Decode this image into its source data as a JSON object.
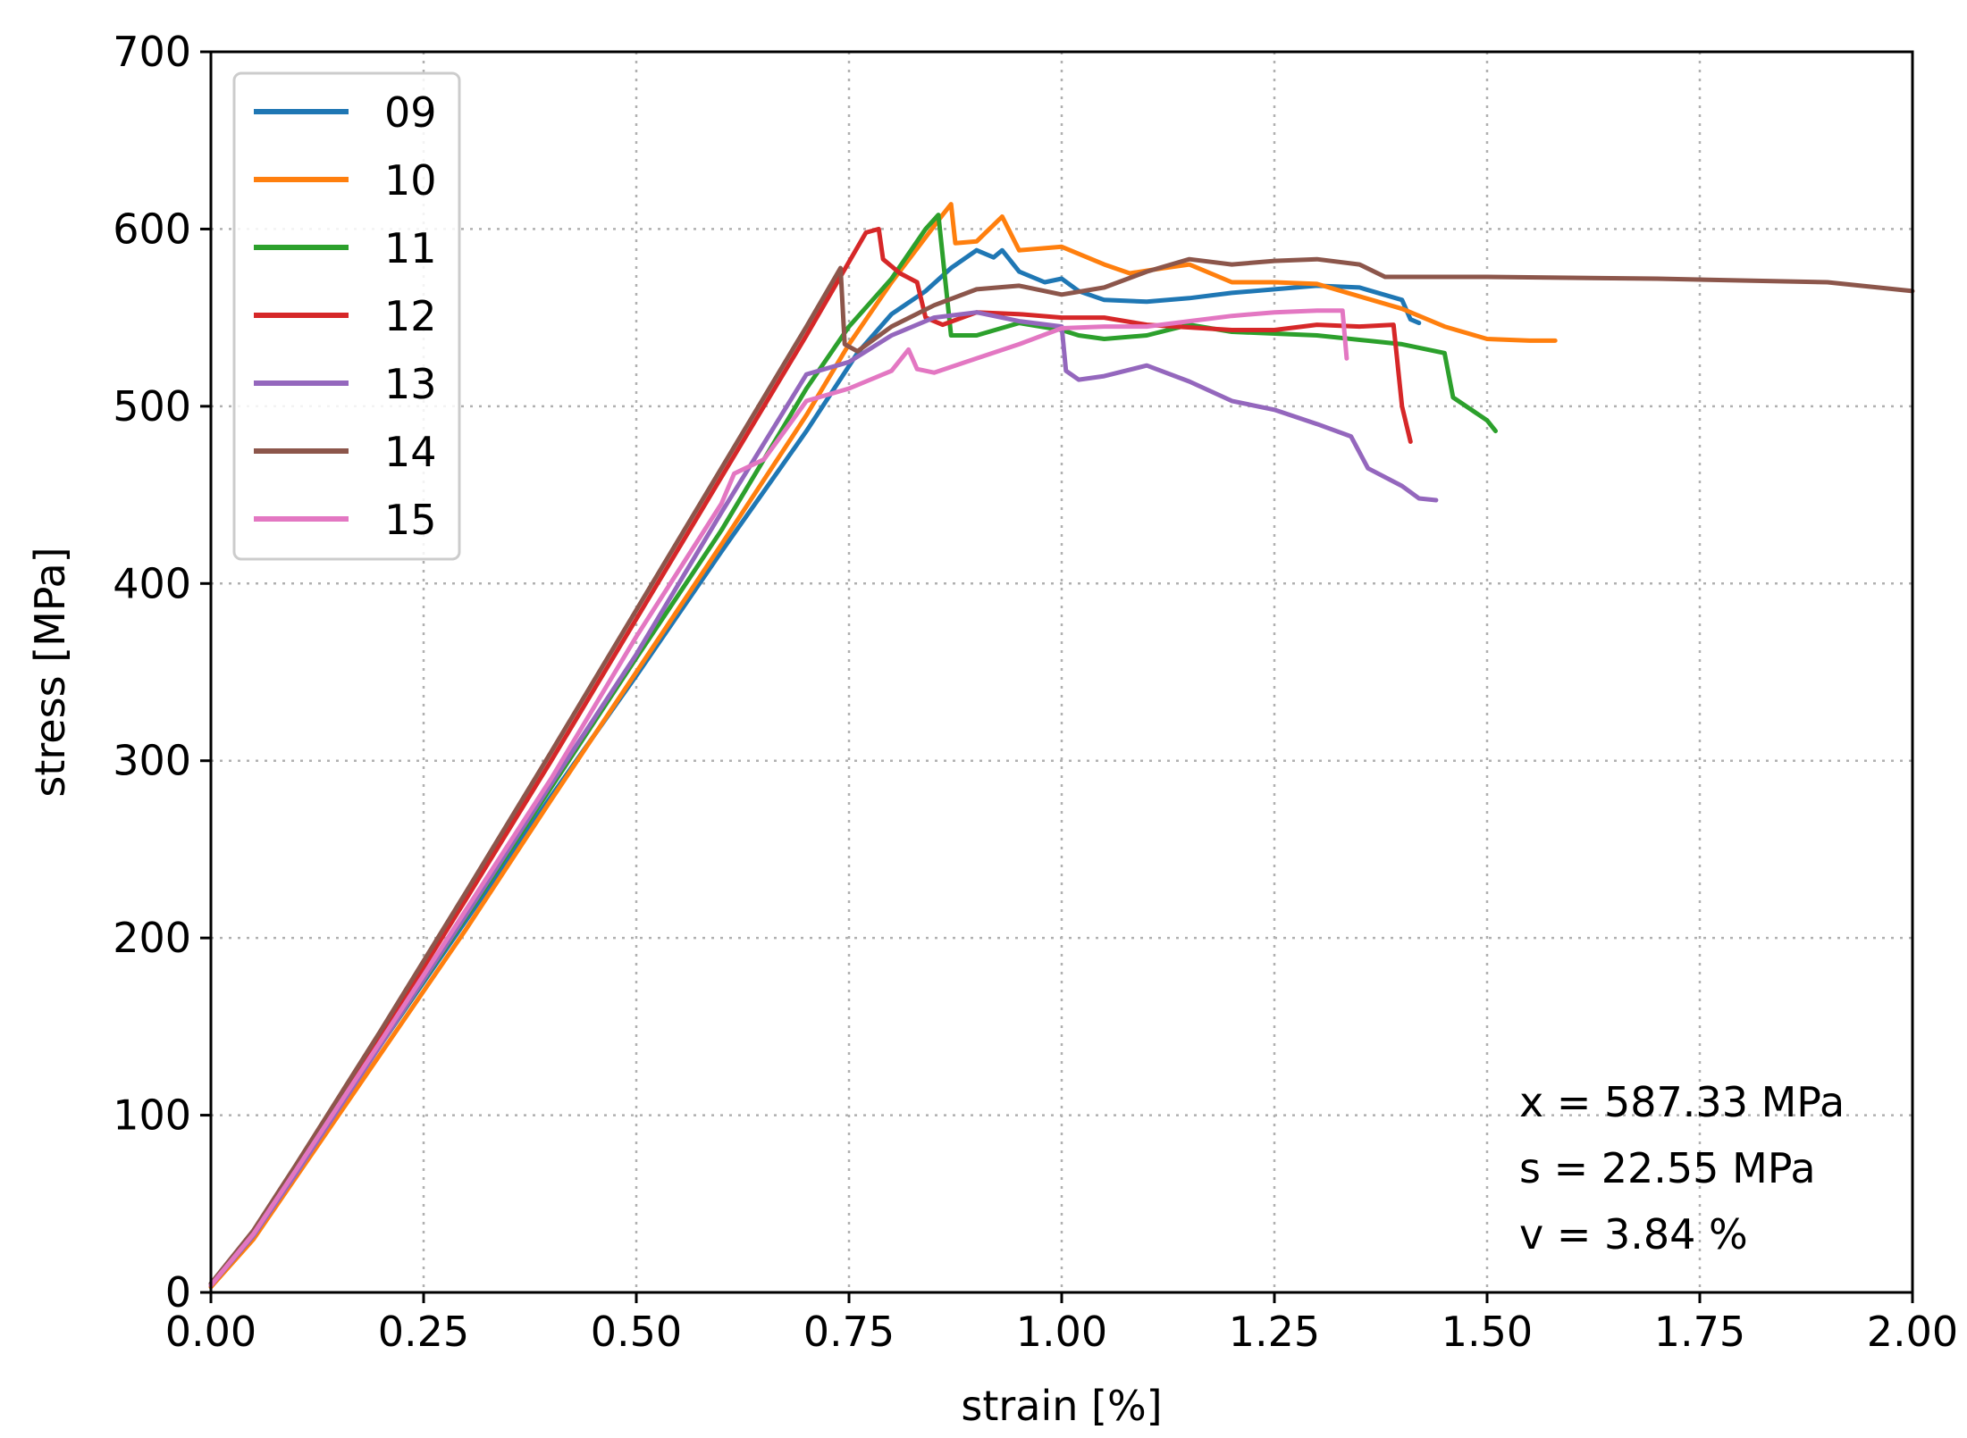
{
  "chart_data": {
    "type": "line",
    "xlabel": "strain [%]",
    "ylabel": "stress [MPa]",
    "xlim": [
      0,
      2.0
    ],
    "ylim": [
      0,
      700
    ],
    "xticks": [
      "0.00",
      "0.25",
      "0.50",
      "0.75",
      "1.00",
      "1.25",
      "1.50",
      "1.75",
      "2.00"
    ],
    "yticks": [
      "0",
      "100",
      "200",
      "300",
      "400",
      "500",
      "600",
      "700"
    ],
    "grid": true,
    "legend_position": "top-left",
    "annotations": [
      "x = 587.33 MPa",
      "s = 22.55 MPa",
      "v = 3.84 %"
    ],
    "series": [
      {
        "name": "09",
        "color": "#1f77b4",
        "points": [
          [
            0,
            5
          ],
          [
            0.05,
            33
          ],
          [
            0.1,
            68
          ],
          [
            0.2,
            140
          ],
          [
            0.3,
            210
          ],
          [
            0.4,
            280
          ],
          [
            0.5,
            348
          ],
          [
            0.6,
            418
          ],
          [
            0.7,
            486
          ],
          [
            0.76,
            530
          ],
          [
            0.8,
            552
          ],
          [
            0.84,
            565
          ],
          [
            0.87,
            578
          ],
          [
            0.9,
            588
          ],
          [
            0.92,
            584
          ],
          [
            0.93,
            588
          ],
          [
            0.95,
            576
          ],
          [
            0.98,
            570
          ],
          [
            1.0,
            572
          ],
          [
            1.02,
            565
          ],
          [
            1.05,
            560
          ],
          [
            1.1,
            559
          ],
          [
            1.15,
            561
          ],
          [
            1.2,
            564
          ],
          [
            1.25,
            566
          ],
          [
            1.3,
            568
          ],
          [
            1.35,
            567
          ],
          [
            1.4,
            560
          ],
          [
            1.41,
            549
          ],
          [
            1.42,
            547
          ]
        ]
      },
      {
        "name": "10",
        "color": "#ff7f0e",
        "points": [
          [
            0,
            3
          ],
          [
            0.05,
            30
          ],
          [
            0.1,
            65
          ],
          [
            0.2,
            135
          ],
          [
            0.3,
            205
          ],
          [
            0.4,
            278
          ],
          [
            0.5,
            350
          ],
          [
            0.6,
            422
          ],
          [
            0.7,
            495
          ],
          [
            0.75,
            535
          ],
          [
            0.8,
            570
          ],
          [
            0.86,
            608
          ],
          [
            0.87,
            614
          ],
          [
            0.875,
            592
          ],
          [
            0.9,
            593
          ],
          [
            0.93,
            607
          ],
          [
            0.95,
            588
          ],
          [
            1.0,
            590
          ],
          [
            1.05,
            580
          ],
          [
            1.08,
            575
          ],
          [
            1.12,
            578
          ],
          [
            1.15,
            580
          ],
          [
            1.2,
            570
          ],
          [
            1.25,
            570
          ],
          [
            1.3,
            569
          ],
          [
            1.35,
            562
          ],
          [
            1.4,
            555
          ],
          [
            1.45,
            545
          ],
          [
            1.5,
            538
          ],
          [
            1.55,
            537
          ],
          [
            1.58,
            537
          ]
        ]
      },
      {
        "name": "11",
        "color": "#2ca02c",
        "points": [
          [
            0,
            4
          ],
          [
            0.05,
            32
          ],
          [
            0.1,
            68
          ],
          [
            0.2,
            140
          ],
          [
            0.3,
            212
          ],
          [
            0.4,
            285
          ],
          [
            0.5,
            358
          ],
          [
            0.6,
            430
          ],
          [
            0.7,
            510
          ],
          [
            0.75,
            545
          ],
          [
            0.8,
            572
          ],
          [
            0.84,
            600
          ],
          [
            0.855,
            608
          ],
          [
            0.87,
            540
          ],
          [
            0.9,
            540
          ],
          [
            0.95,
            547
          ],
          [
            1.0,
            543
          ],
          [
            1.02,
            540
          ],
          [
            1.05,
            538
          ],
          [
            1.1,
            540
          ],
          [
            1.15,
            546
          ],
          [
            1.2,
            542
          ],
          [
            1.3,
            540
          ],
          [
            1.4,
            535
          ],
          [
            1.45,
            530
          ],
          [
            1.46,
            505
          ],
          [
            1.5,
            492
          ],
          [
            1.51,
            486
          ]
        ]
      },
      {
        "name": "12",
        "color": "#d62728",
        "points": [
          [
            0,
            4
          ],
          [
            0.05,
            33
          ],
          [
            0.1,
            70
          ],
          [
            0.2,
            145
          ],
          [
            0.3,
            222
          ],
          [
            0.4,
            300
          ],
          [
            0.5,
            380
          ],
          [
            0.6,
            460
          ],
          [
            0.7,
            540
          ],
          [
            0.77,
            598
          ],
          [
            0.785,
            600
          ],
          [
            0.79,
            583
          ],
          [
            0.81,
            575
          ],
          [
            0.83,
            570
          ],
          [
            0.84,
            550
          ],
          [
            0.86,
            546
          ],
          [
            0.9,
            553
          ],
          [
            0.95,
            552
          ],
          [
            1.0,
            550
          ],
          [
            1.05,
            550
          ],
          [
            1.1,
            546
          ],
          [
            1.2,
            543
          ],
          [
            1.25,
            543
          ],
          [
            1.3,
            546
          ],
          [
            1.35,
            545
          ],
          [
            1.39,
            546
          ],
          [
            1.4,
            500
          ],
          [
            1.41,
            480
          ]
        ]
      },
      {
        "name": "13",
        "color": "#9467bd",
        "points": [
          [
            0,
            4
          ],
          [
            0.05,
            32
          ],
          [
            0.1,
            67
          ],
          [
            0.2,
            140
          ],
          [
            0.3,
            213
          ],
          [
            0.4,
            287
          ],
          [
            0.5,
            360
          ],
          [
            0.6,
            440
          ],
          [
            0.7,
            518
          ],
          [
            0.75,
            525
          ],
          [
            0.8,
            540
          ],
          [
            0.85,
            550
          ],
          [
            0.9,
            553
          ],
          [
            0.95,
            548
          ],
          [
            1.0,
            545
          ],
          [
            1.005,
            520
          ],
          [
            1.02,
            515
          ],
          [
            1.05,
            517
          ],
          [
            1.1,
            523
          ],
          [
            1.15,
            514
          ],
          [
            1.2,
            503
          ],
          [
            1.25,
            498
          ],
          [
            1.3,
            490
          ],
          [
            1.34,
            483
          ],
          [
            1.36,
            465
          ],
          [
            1.4,
            455
          ],
          [
            1.42,
            448
          ],
          [
            1.44,
            447
          ]
        ]
      },
      {
        "name": "14",
        "color": "#8c564b",
        "points": [
          [
            0,
            5
          ],
          [
            0.05,
            35
          ],
          [
            0.1,
            72
          ],
          [
            0.2,
            148
          ],
          [
            0.3,
            226
          ],
          [
            0.4,
            305
          ],
          [
            0.5,
            385
          ],
          [
            0.6,
            465
          ],
          [
            0.7,
            545
          ],
          [
            0.74,
            578
          ],
          [
            0.745,
            535
          ],
          [
            0.76,
            531
          ],
          [
            0.8,
            545
          ],
          [
            0.85,
            557
          ],
          [
            0.9,
            566
          ],
          [
            0.95,
            568
          ],
          [
            1.0,
            563
          ],
          [
            1.05,
            567
          ],
          [
            1.1,
            576
          ],
          [
            1.15,
            583
          ],
          [
            1.2,
            580
          ],
          [
            1.25,
            582
          ],
          [
            1.3,
            583
          ],
          [
            1.35,
            580
          ],
          [
            1.38,
            573
          ],
          [
            1.5,
            573
          ],
          [
            1.7,
            572
          ],
          [
            1.9,
            570
          ],
          [
            2.0,
            565
          ]
        ]
      },
      {
        "name": "15",
        "color": "#e377c2",
        "points": [
          [
            0,
            4
          ],
          [
            0.05,
            33
          ],
          [
            0.1,
            69
          ],
          [
            0.2,
            142
          ],
          [
            0.3,
            216
          ],
          [
            0.4,
            290
          ],
          [
            0.5,
            370
          ],
          [
            0.6,
            445
          ],
          [
            0.615,
            462
          ],
          [
            0.65,
            470
          ],
          [
            0.7,
            503
          ],
          [
            0.75,
            510
          ],
          [
            0.8,
            520
          ],
          [
            0.82,
            532
          ],
          [
            0.83,
            521
          ],
          [
            0.85,
            519
          ],
          [
            0.9,
            527
          ],
          [
            0.95,
            535
          ],
          [
            1.0,
            544
          ],
          [
            1.05,
            545
          ],
          [
            1.1,
            545
          ],
          [
            1.15,
            548
          ],
          [
            1.2,
            551
          ],
          [
            1.25,
            553
          ],
          [
            1.3,
            554
          ],
          [
            1.33,
            554
          ],
          [
            1.335,
            527
          ]
        ]
      }
    ]
  }
}
